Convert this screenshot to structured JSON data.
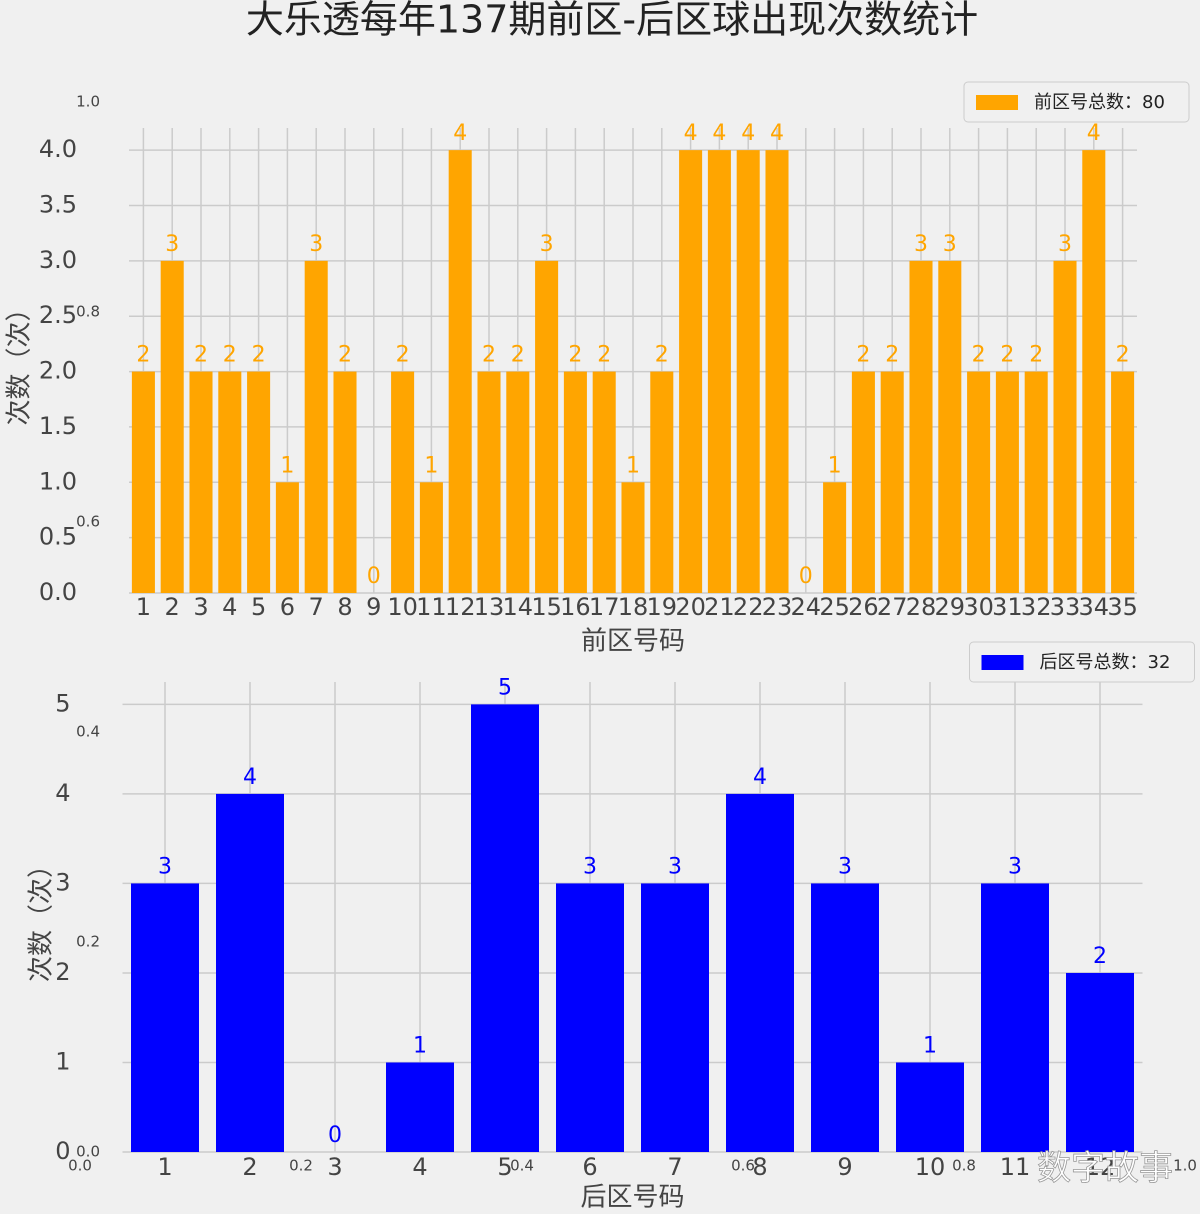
{
  "title": "大乐透每年137期前区-后区球出现次数统计",
  "watermark": "数字故事",
  "overlay_axis": {
    "xticks": [
      {
        "value": 0,
        "label": "0.0"
      },
      {
        "value": 0.2,
        "label": "0.2"
      },
      {
        "value": 0.4,
        "label": "0.4"
      },
      {
        "value": 0.6,
        "label": "0.6"
      },
      {
        "value": 0.8,
        "label": "0.8"
      },
      {
        "value": 1,
        "label": "1.0"
      }
    ],
    "yticks": [
      {
        "value": 0,
        "label": "0.0"
      },
      {
        "value": 0.2,
        "label": "0.2"
      },
      {
        "value": 0.4,
        "label": "0.4"
      },
      {
        "value": 0.6,
        "label": "0.6"
      },
      {
        "value": 0.8,
        "label": "0.8"
      },
      {
        "value": 1,
        "label": "1.0"
      }
    ]
  },
  "chart_data": [
    {
      "type": "bar",
      "x_label": "前区号码",
      "y_label": "次数（次）",
      "legend": "upper right",
      "categories": [
        "1",
        "2",
        "3",
        "4",
        "5",
        "6",
        "7",
        "8",
        "9",
        "10",
        "11",
        "12",
        "13",
        "14",
        "15",
        "16",
        "17",
        "18",
        "19",
        "20",
        "21",
        "22",
        "23",
        "24",
        "25",
        "26",
        "27",
        "28",
        "29",
        "30",
        "31",
        "32",
        "33",
        "34",
        "35"
      ],
      "series": [
        {
          "name": "前区号总数：80",
          "color": "#ffa500",
          "values": [
            2,
            3,
            2,
            2,
            2,
            1,
            3,
            2,
            0,
            2,
            1,
            4,
            2,
            2,
            3,
            2,
            2,
            1,
            2,
            4,
            4,
            4,
            4,
            0,
            1,
            2,
            2,
            3,
            3,
            2,
            2,
            2,
            3,
            4,
            2
          ]
        }
      ],
      "ylim": [
        0,
        4.2
      ],
      "yticks": [
        {
          "value": 0,
          "label": "0.0"
        },
        {
          "value": 0.5,
          "label": "0.5"
        },
        {
          "value": 1,
          "label": "1.0"
        },
        {
          "value": 1.5,
          "label": "1.5"
        },
        {
          "value": 2,
          "label": "2.0"
        },
        {
          "value": 2.5,
          "label": "2.5"
        },
        {
          "value": 3,
          "label": "3.0"
        },
        {
          "value": 3.5,
          "label": "3.5"
        },
        {
          "value": 4,
          "label": "4.0"
        }
      ],
      "grid": true
    },
    {
      "type": "bar",
      "x_label": "后区号码",
      "y_label": "次数（次）",
      "legend": "upper right",
      "categories": [
        "1",
        "2",
        "3",
        "4",
        "5",
        "6",
        "7",
        "8",
        "9",
        "10",
        "11",
        "12"
      ],
      "series": [
        {
          "name": "后区号总数：32",
          "color": "#0000ff",
          "values": [
            3,
            4,
            0,
            1,
            5,
            3,
            3,
            4,
            3,
            1,
            3,
            2
          ]
        }
      ],
      "ylim": [
        0,
        5.25
      ],
      "yticks": [
        0,
        1,
        2,
        3,
        4,
        5
      ],
      "grid": true
    }
  ]
}
